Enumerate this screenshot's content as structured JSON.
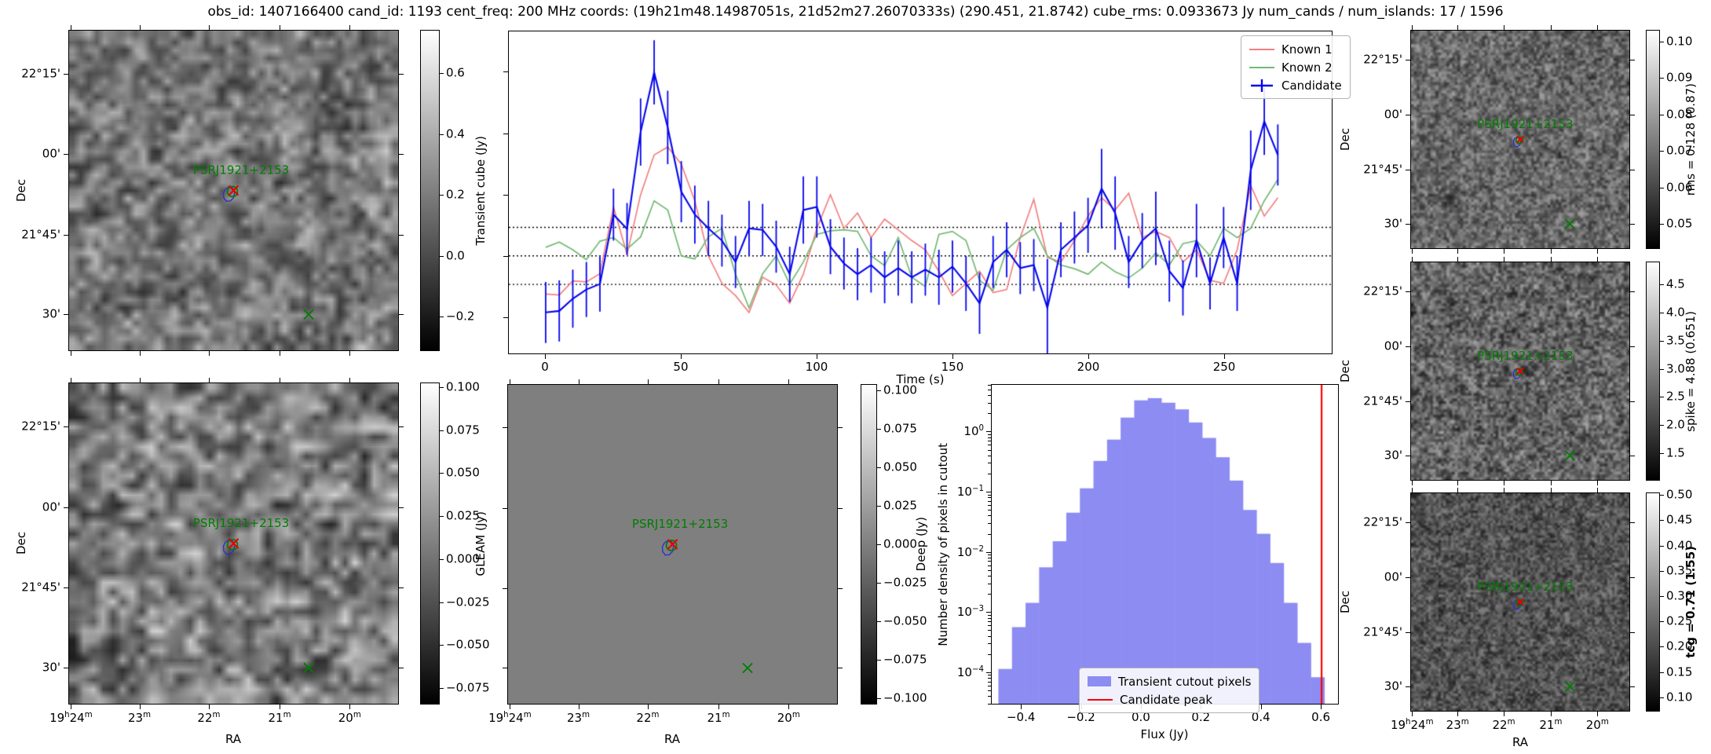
{
  "title": "obs_id: 1407166400 cand_id: 1193 cent_freq: 200 MHz coords: (19h21m48.14987051s, 21d52m27.26070333s) (290.451, 21.8742) cube_rms: 0.0933673 Jy num_cands / num_islands: 17 / 1596",
  "source_label": "PSRJ1921+2153",
  "axis": {
    "dec_label": "Dec",
    "ra_label": "RA",
    "dec_ticks": [
      "22°15'",
      "00'",
      "21°45'",
      "30'"
    ],
    "ra_ticks": [
      "19h24m",
      "23m",
      "22m",
      "21m",
      "20m"
    ]
  },
  "colorbars": {
    "transient": {
      "label": "Transient cube (Jy)",
      "ticks": [
        "0.6",
        "0.4",
        "0.2",
        "0.0",
        "−0.2"
      ]
    },
    "gleam": {
      "label": "GLEAM (Jy)",
      "ticks": [
        "0.100",
        "0.075",
        "0.050",
        "0.025",
        "0.000",
        "−0.025",
        "−0.050",
        "−0.075"
      ]
    },
    "deep": {
      "label": "Deep (Jy)",
      "ticks": [
        "0.100",
        "0.075",
        "0.050",
        "0.025",
        "0.000",
        "−0.025",
        "−0.050",
        "−0.075",
        "−0.100"
      ]
    },
    "rms": {
      "label": "rms = 0.128 (0.87)",
      "ticks": [
        "0.10",
        "0.09",
        "0.08",
        "0.07",
        "0.06",
        "0.05"
      ]
    },
    "spike": {
      "label": "spike = 4.88 (0.651)",
      "ticks": [
        "4.5",
        "4.0",
        "3.5",
        "3.0",
        "2.5",
        "2.0",
        "1.5"
      ]
    },
    "tcg": {
      "label": "tcg = 0.71 (1.55)",
      "ticks": [
        "0.50",
        "0.45",
        "0.40",
        "0.35",
        "0.30",
        "0.25",
        "0.20",
        "0.15",
        "0.10"
      ]
    }
  },
  "lightcurve": {
    "xlabel": "Time (s)",
    "xticks": [
      "0",
      "50",
      "100",
      "150",
      "200",
      "250"
    ],
    "legend": [
      "Known 1",
      "Known 2",
      "Candidate"
    ]
  },
  "histogram": {
    "xlabel": "Flux (Jy)",
    "ylabel": "Number density of pixels in cutout",
    "xticks": [
      "−0.4",
      "−0.2",
      "0.0",
      "0.2",
      "0.4",
      "0.6"
    ],
    "ytick_mantissa": "10",
    "ytick_exponents": [
      "0",
      "−1",
      "−2",
      "−3",
      "−4"
    ],
    "legend": [
      "Transient cutout pixels",
      "Candidate peak"
    ]
  },
  "colors": {
    "known1": "#f28080",
    "known2": "#74b974",
    "candidate": "#0404ee",
    "hist_bar": "#8c8cf2",
    "peak_line": "#ff0000",
    "marker_green": "#007d00",
    "marker_red": "#e50000",
    "contour": "#3030cf",
    "dotted": "#000000"
  },
  "chart_data": [
    {
      "type": "line",
      "name": "lightcurve",
      "xlabel": "Time (s)",
      "xlim": [
        -13.6,
        291
      ],
      "ylim": [
        -0.319,
        0.734
      ],
      "hlines": [
        0.0934,
        0.0,
        -0.0934
      ],
      "x": [
        0,
        5,
        10,
        15,
        20,
        25,
        30,
        35,
        40,
        45,
        50,
        55,
        60,
        65,
        70,
        75,
        80,
        85,
        90,
        95,
        100,
        105,
        110,
        115,
        120,
        125,
        130,
        135,
        140,
        145,
        150,
        155,
        160,
        165,
        170,
        175,
        180,
        185,
        190,
        195,
        200,
        205,
        210,
        215,
        220,
        225,
        230,
        235,
        240,
        245,
        250,
        255,
        260,
        265,
        270
      ],
      "series": [
        {
          "name": "Known 1",
          "values": [
            -0.125,
            -0.128,
            -0.082,
            -0.085,
            -0.058,
            0.16,
            0.005,
            0.2,
            0.33,
            0.356,
            0.3,
            0.18,
            0.0,
            -0.09,
            -0.13,
            -0.185,
            -0.07,
            -0.095,
            -0.155,
            -0.06,
            0.09,
            0.2,
            0.09,
            0.14,
            0.06,
            0.12,
            0.085,
            0.05,
            0.02,
            -0.05,
            -0.13,
            -0.09,
            -0.05,
            -0.12,
            -0.11,
            0.06,
            0.185,
            -0.005,
            -0.02,
            0.05,
            0.13,
            0.19,
            0.15,
            0.205,
            0.06,
            0.08,
            0.06,
            -0.02,
            0.02,
            -0.08,
            -0.09,
            0.02,
            0.23,
            0.13,
            0.19
          ]
        },
        {
          "name": "Known 2",
          "values": [
            0.028,
            0.045,
            0.02,
            -0.012,
            0.048,
            0.06,
            0.022,
            0.062,
            0.18,
            0.15,
            0.0,
            -0.01,
            0.062,
            0.09,
            -0.06,
            -0.17,
            -0.058,
            0.0,
            -0.092,
            -0.02,
            0.07,
            0.082,
            0.085,
            0.08,
            0.0,
            -0.032,
            0.06,
            -0.07,
            -0.1,
            0.07,
            0.08,
            0.05,
            -0.08,
            -0.112,
            0.02,
            0.06,
            0.09,
            0.0,
            -0.03,
            -0.042,
            -0.06,
            -0.02,
            -0.052,
            -0.072,
            -0.04,
            0.01,
            -0.03,
            0.04,
            0.05,
            0.0,
            0.09,
            0.06,
            0.09,
            0.18,
            0.25
          ]
        },
        {
          "name": "Candidate",
          "values": [
            -0.185,
            -0.18,
            -0.14,
            -0.11,
            -0.092,
            0.135,
            0.088,
            0.405,
            0.6,
            0.42,
            0.21,
            0.135,
            0.09,
            0.05,
            -0.02,
            0.09,
            0.085,
            0.03,
            -0.06,
            0.15,
            0.16,
            0.03,
            -0.025,
            -0.06,
            -0.03,
            -0.07,
            -0.04,
            -0.07,
            -0.045,
            -0.07,
            -0.035,
            -0.09,
            -0.155,
            -0.02,
            0.02,
            -0.04,
            -0.03,
            -0.17,
            0.02,
            0.06,
            0.1,
            0.22,
            0.14,
            -0.02,
            0.05,
            0.09,
            -0.05,
            -0.105,
            0.05,
            -0.09,
            0.06,
            -0.09,
            0.28,
            0.44,
            0.33
          ],
          "yerr": [
            0.1,
            0.1,
            0.095,
            0.09,
            0.09,
            0.085,
            0.085,
            0.11,
            0.105,
            0.12,
            0.1,
            0.095,
            0.09,
            0.085,
            0.085,
            0.09,
            0.085,
            0.085,
            0.09,
            0.11,
            0.1,
            0.09,
            0.085,
            0.085,
            0.09,
            0.085,
            0.09,
            0.085,
            0.085,
            0.09,
            0.085,
            0.09,
            0.1,
            0.085,
            0.09,
            0.085,
            0.085,
            0.16,
            0.09,
            0.085,
            0.09,
            0.13,
            0.12,
            0.085,
            0.09,
            0.12,
            0.1,
            0.09,
            0.12,
            0.085,
            0.1,
            0.09,
            0.13,
            0.11,
            0.1
          ]
        }
      ]
    },
    {
      "type": "bar",
      "name": "flux-histogram",
      "xlabel": "Flux (Jy)",
      "ylabel": "Number density of pixels in cutout",
      "yscale": "log",
      "xlim": [
        -0.5,
        0.66
      ],
      "ylim": [
        2.9e-05,
        6.2
      ],
      "bin_width": 0.0455,
      "bin_centers": [
        -0.455,
        -0.4095,
        -0.364,
        -0.3185,
        -0.273,
        -0.2275,
        -0.182,
        -0.1365,
        -0.091,
        -0.0455,
        0.0,
        0.0455,
        0.091,
        0.1365,
        0.182,
        0.2275,
        0.273,
        0.3185,
        0.364,
        0.4095,
        0.455,
        0.5005,
        0.546,
        0.5915
      ],
      "densities": [
        0.00011,
        0.00055,
        0.0014,
        0.0055,
        0.015,
        0.045,
        0.115,
        0.33,
        0.75,
        1.75,
        3.4,
        3.7,
        3.1,
        2.4,
        1.45,
        0.8,
        0.38,
        0.155,
        0.05,
        0.02,
        0.0065,
        0.0014,
        0.0003,
        8e-05
      ],
      "candidate_peak": 0.605
    }
  ]
}
